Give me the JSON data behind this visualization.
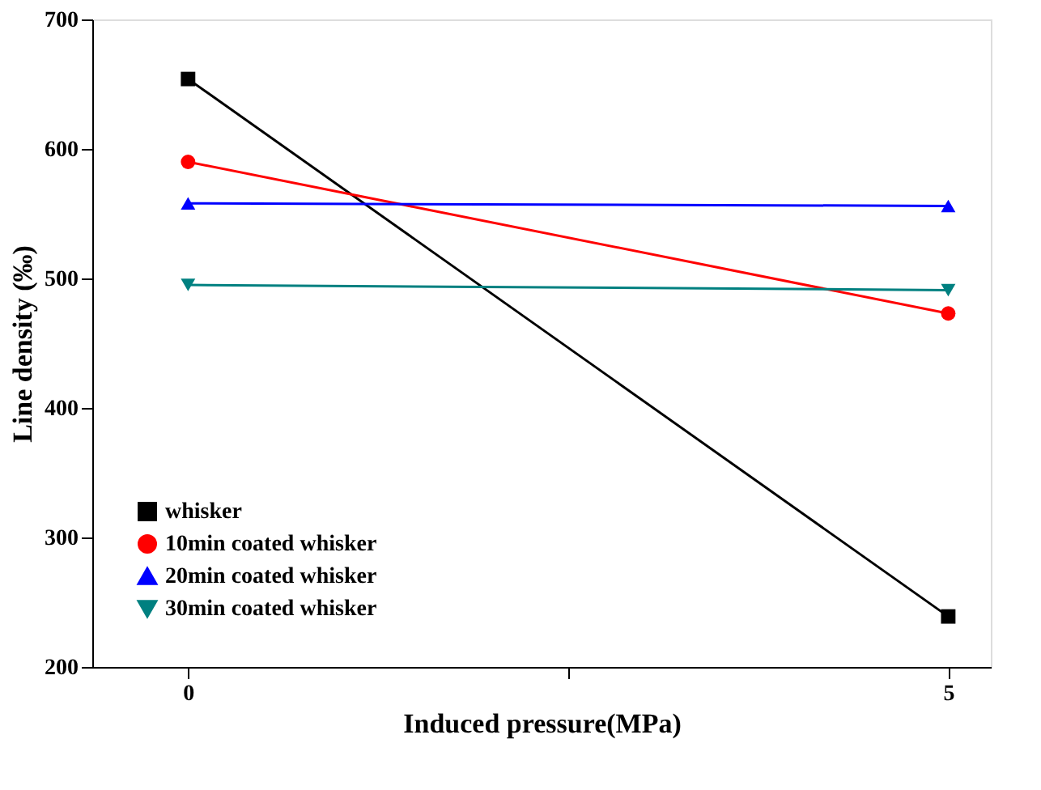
{
  "chart_data": {
    "type": "line",
    "xlabel": "Induced pressure(MPa)",
    "ylabel": "Line density (‰)",
    "x": [
      0,
      5
    ],
    "xlim": [
      -0.63,
      5.28
    ],
    "xticks": [
      0,
      {
        "value": 2.5,
        "label": null
      },
      5
    ],
    "ylim": [
      200,
      700
    ],
    "yticks": [
      200,
      300,
      400,
      500,
      600,
      700
    ],
    "grid": false,
    "legend": "bottom left",
    "line_style": "solid",
    "series": [
      {
        "name": "whisker",
        "color": "#000000",
        "marker": "square",
        "values": [
          654,
          239
        ]
      },
      {
        "name": "10min coated whisker",
        "color": "#ff0000",
        "marker": "circle",
        "values": [
          590,
          473
        ]
      },
      {
        "name": "20min coated whisker",
        "color": "#0000ff",
        "marker": "triangle",
        "values": [
          558,
          556
        ]
      },
      {
        "name": "30min coated whisker",
        "color": "#008080",
        "marker": "triangle-down",
        "values": [
          495,
          491
        ]
      }
    ]
  }
}
